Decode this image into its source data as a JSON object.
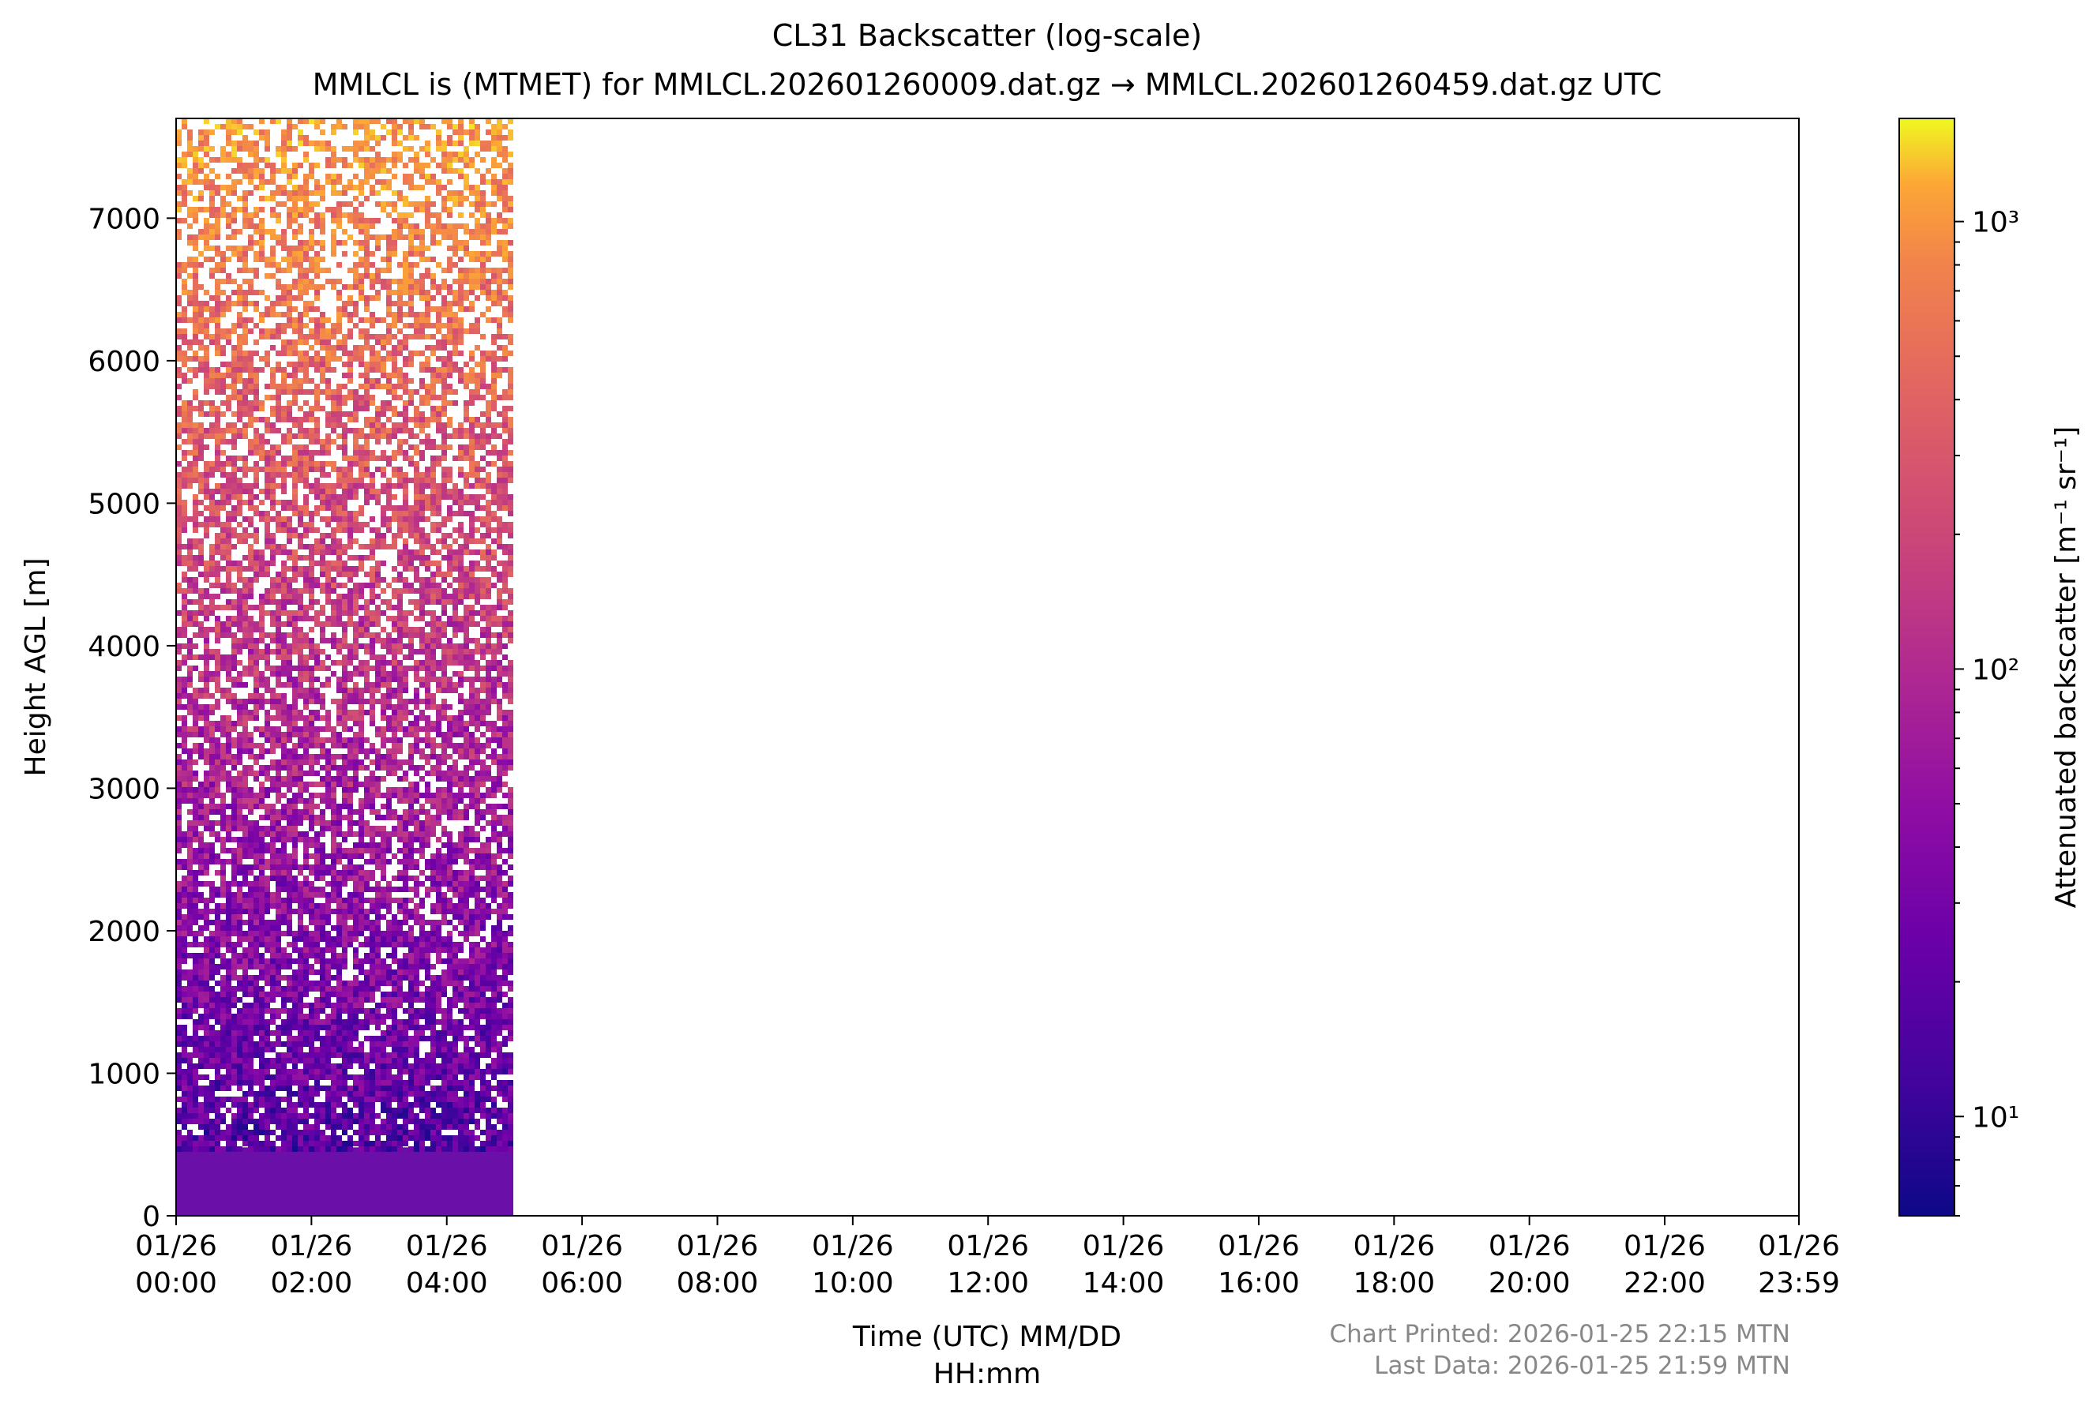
{
  "chart_data": {
    "type": "heatmap",
    "title": "CL31 Backscatter (log-scale)",
    "subtitle": "MMLCL is (MTMET) for MMLCL.202601260009.dat.gz → MMLCL.202601260459.dat.gz UTC",
    "xlabel": "Time (UTC) MM/DD\nHH:mm",
    "ylabel": "Height AGL [m]",
    "x_ticks": [
      {
        "t": 0,
        "label": "01/26\n00:00"
      },
      {
        "t": 120,
        "label": "01/26\n02:00"
      },
      {
        "t": 240,
        "label": "01/26\n04:00"
      },
      {
        "t": 360,
        "label": "01/26\n06:00"
      },
      {
        "t": 480,
        "label": "01/26\n08:00"
      },
      {
        "t": 600,
        "label": "01/26\n10:00"
      },
      {
        "t": 720,
        "label": "01/26\n12:00"
      },
      {
        "t": 840,
        "label": "01/26\n14:00"
      },
      {
        "t": 960,
        "label": "01/26\n16:00"
      },
      {
        "t": 1080,
        "label": "01/26\n18:00"
      },
      {
        "t": 1200,
        "label": "01/26\n20:00"
      },
      {
        "t": 1320,
        "label": "01/26\n22:00"
      },
      {
        "t": 1439,
        "label": "01/26\n23:59"
      }
    ],
    "xlim": [
      "01/26 00:00",
      "01/26 23:59"
    ],
    "y_ticks": [
      0,
      1000,
      2000,
      3000,
      4000,
      5000,
      6000,
      7000
    ],
    "ylim": [
      0,
      7700
    ],
    "data_extent": {
      "time_start": "01/26 00:00",
      "time_end": "01/26 04:59",
      "height_max": 7700
    },
    "colorbar": {
      "label": "Attenuated backscatter [m⁻¹ sr⁻¹]",
      "scale": "log",
      "range": [
        6,
        1700
      ],
      "colormap": "plasma",
      "ticks": [
        {
          "value": 10,
          "label": "10¹"
        },
        {
          "value": 100,
          "label": "10²"
        },
        {
          "value": 1000,
          "label": "10³"
        }
      ]
    },
    "footer": {
      "printed": "Chart Printed: 2026-01-25 22:15 MTN",
      "last_data": "Last Data: 2026-01-25 21:59 MTN"
    }
  }
}
